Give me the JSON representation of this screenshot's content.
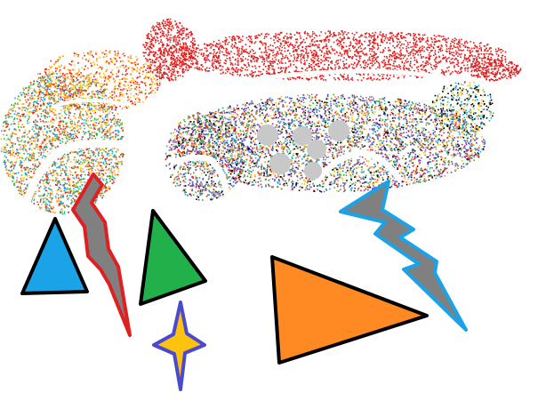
{
  "scene": {
    "background": "#ffffff",
    "shapes": [
      {
        "name": "blue-triangle",
        "kind": "triangle",
        "fill": "#1aa3e6",
        "stroke": "#000000"
      },
      {
        "name": "red-gray-lightning-bolt",
        "kind": "lightning-bolt",
        "fill": "#808080",
        "stroke": "#e02020"
      },
      {
        "name": "green-triangle",
        "kind": "triangle",
        "fill": "#22b04a",
        "stroke": "#000000"
      },
      {
        "name": "orange-triangle",
        "kind": "triangle",
        "fill": "#ff8a24",
        "stroke": "#000000"
      },
      {
        "name": "blue-gray-lightning-bolt",
        "kind": "lightning-bolt",
        "fill": "#808080",
        "stroke": "#1aa3e6"
      },
      {
        "name": "yellow-four-point-star",
        "kind": "star",
        "fill": "#ffc20e",
        "stroke": "#4a4ad0"
      },
      {
        "name": "gray-circle-cluster",
        "kind": "circles",
        "fill": "#c8c8c8",
        "stroke": "none"
      }
    ],
    "scatter_colors": [
      "#e02020",
      "#ff8a24",
      "#ffc20e",
      "#22b04a",
      "#1aa3e6",
      "#4a4ad0",
      "#7a2fbf",
      "#000000",
      "#808080"
    ]
  }
}
